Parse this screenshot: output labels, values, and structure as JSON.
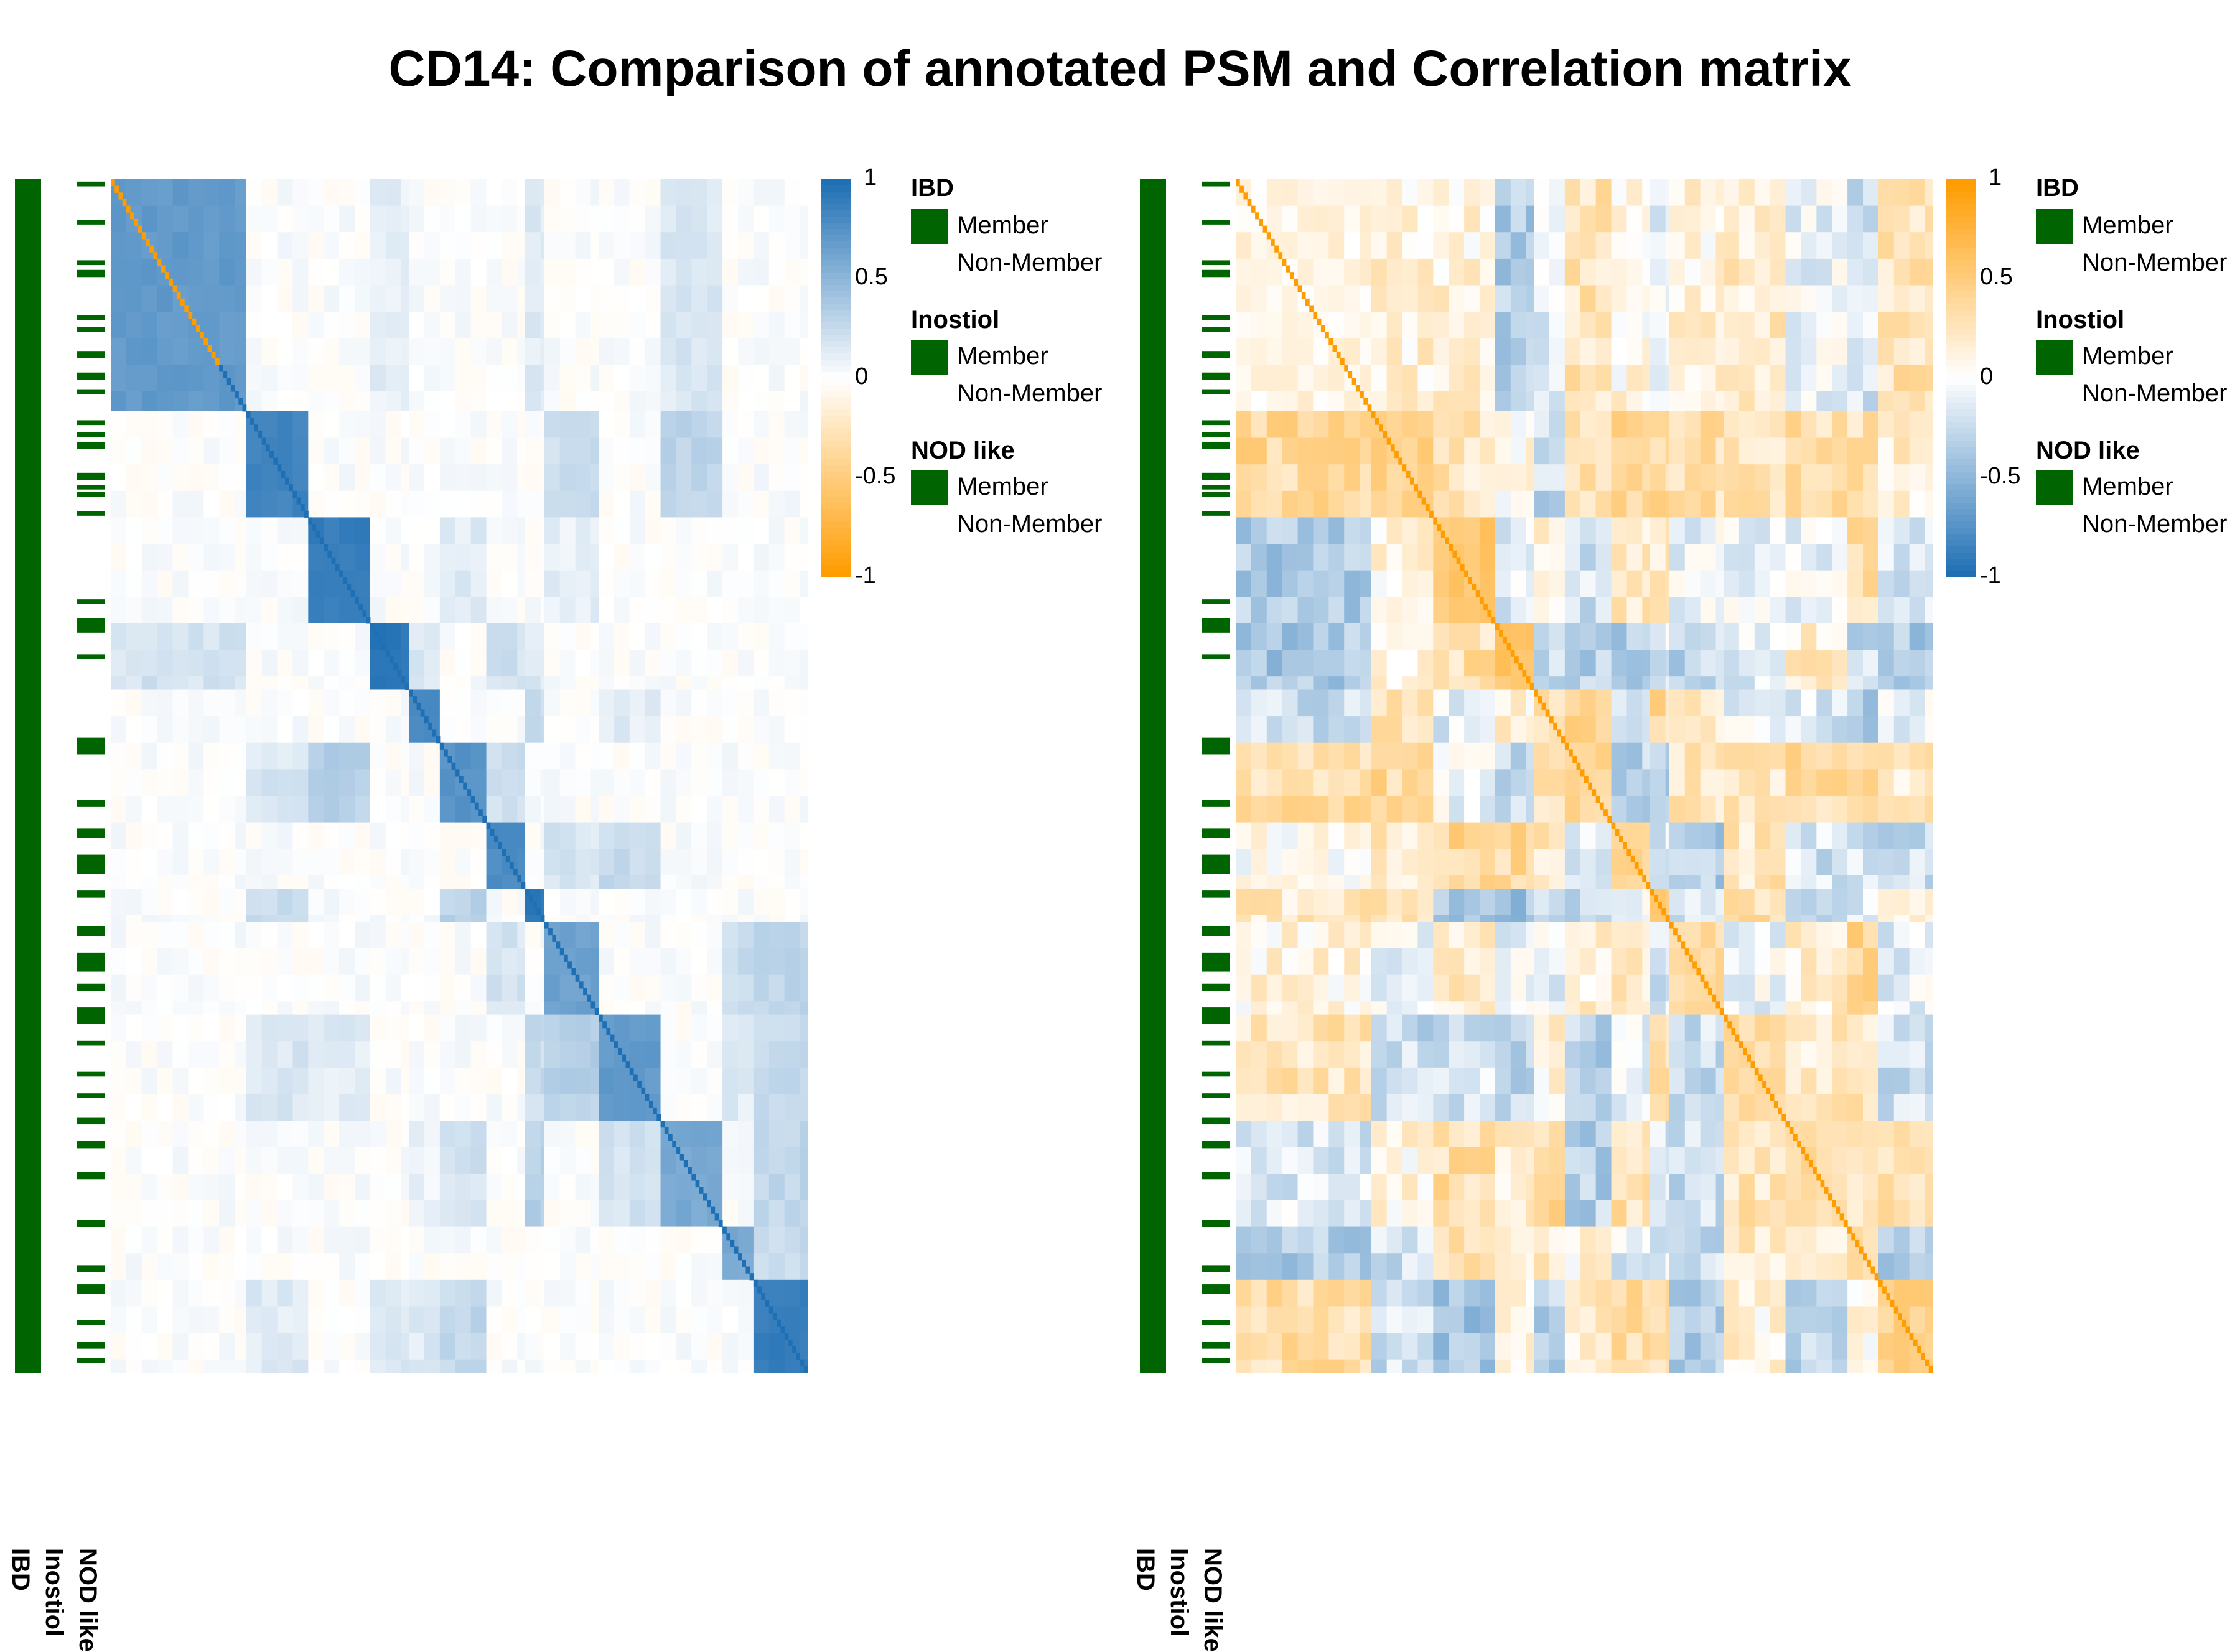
{
  "title": "CD14: Comparison of annotated PSM and Correlation matrix",
  "colors": {
    "member": "#006400",
    "positive_blue": "#1f6fb4",
    "negative_orange": "#ff9c00",
    "white": "#ffffff"
  },
  "annotation_labels": [
    "IBD",
    "Inostiol",
    "NOD like"
  ],
  "legend_groups": [
    {
      "title": "IBD",
      "member": "Member",
      "non_member": "Non-Member"
    },
    {
      "title": "Inostiol",
      "member": "Member",
      "non_member": "Non-Member"
    },
    {
      "title": "NOD like",
      "member": "Member",
      "non_member": "Non-Member"
    }
  ],
  "chart_data": [
    {
      "type": "heatmap",
      "name": "PSM",
      "n": 180,
      "color_scale": {
        "min": -1,
        "max": 1,
        "ticks": [
          "1",
          "0.5",
          "0",
          "-0.5",
          "-1"
        ],
        "high_color": "#1f6fb4",
        "low_color": "#ff9c00"
      },
      "clusters": [
        {
          "start": 0,
          "end": 35,
          "level": 0.7
        },
        {
          "start": 35,
          "end": 51,
          "level": 0.85
        },
        {
          "start": 51,
          "end": 67,
          "level": 0.9
        },
        {
          "start": 67,
          "end": 77,
          "level": 0.95
        },
        {
          "start": 77,
          "end": 85,
          "level": 0.8
        },
        {
          "start": 85,
          "end": 97,
          "level": 0.75
        },
        {
          "start": 97,
          "end": 107,
          "level": 0.8
        },
        {
          "start": 107,
          "end": 112,
          "level": 0.95
        },
        {
          "start": 112,
          "end": 126,
          "level": 0.65
        },
        {
          "start": 126,
          "end": 142,
          "level": 0.7
        },
        {
          "start": 142,
          "end": 158,
          "level": 0.6
        },
        {
          "start": 158,
          "end": 166,
          "level": 0.6
        },
        {
          "start": 166,
          "end": 180,
          "level": 0.9
        }
      ],
      "diagonal_orange_range": [
        0,
        28
      ],
      "ibd_member": "all",
      "inostiol_member": "all",
      "nod_like_member_rows": [
        [
          1,
          3
        ],
        [
          17,
          19
        ],
        [
          34,
          36
        ],
        [
          38,
          41
        ],
        [
          57,
          59
        ],
        [
          62,
          64
        ],
        [
          72,
          75
        ],
        [
          81,
          84
        ],
        [
          88,
          90
        ],
        [
          101,
          103
        ],
        [
          106,
          108
        ],
        [
          110,
          113
        ],
        [
          123,
          126
        ],
        [
          128,
          130
        ],
        [
          131,
          133
        ],
        [
          139,
          141
        ],
        [
          176,
          178
        ],
        [
          184,
          190
        ],
        [
          199,
          201
        ],
        [
          234,
          241
        ],
        [
          260,
          263
        ],
        [
          272,
          276
        ],
        [
          283,
          291
        ],
        [
          298,
          301
        ],
        [
          313,
          317
        ],
        [
          324,
          332
        ],
        [
          337,
          340
        ],
        [
          347,
          354
        ],
        [
          361,
          363
        ],
        [
          374,
          376
        ],
        [
          383,
          385
        ],
        [
          393,
          396
        ],
        [
          403,
          406
        ],
        [
          416,
          419
        ],
        [
          436,
          439
        ],
        [
          455,
          458
        ],
        [
          463,
          467
        ],
        [
          478,
          480
        ],
        [
          487,
          490
        ],
        [
          494,
          496
        ]
      ]
    },
    {
      "type": "heatmap",
      "name": "Correlation matrix",
      "n": 180,
      "color_scale": {
        "min": -1,
        "max": 1,
        "ticks": [
          "1",
          "0.5",
          "0",
          "-0.5",
          "-1"
        ],
        "high_color": "#ff9c00",
        "low_color": "#1f6fb4"
      },
      "clusters": [
        {
          "start": 0,
          "end": 35,
          "level": 0.1
        },
        {
          "start": 35,
          "end": 51,
          "level": 0.45
        },
        {
          "start": 51,
          "end": 67,
          "level": 0.55
        },
        {
          "start": 67,
          "end": 77,
          "level": 0.6
        },
        {
          "start": 77,
          "end": 85,
          "level": 0.3
        },
        {
          "start": 85,
          "end": 97,
          "level": 0.4
        },
        {
          "start": 97,
          "end": 107,
          "level": 0.4
        },
        {
          "start": 107,
          "end": 112,
          "level": 0.5
        },
        {
          "start": 112,
          "end": 126,
          "level": 0.35
        },
        {
          "start": 126,
          "end": 142,
          "level": 0.35
        },
        {
          "start": 142,
          "end": 158,
          "level": 0.35
        },
        {
          "start": 158,
          "end": 166,
          "level": 0.3
        },
        {
          "start": 166,
          "end": 180,
          "level": 0.45
        }
      ],
      "ibd_member": "all",
      "inostiol_member": "all"
    }
  ]
}
